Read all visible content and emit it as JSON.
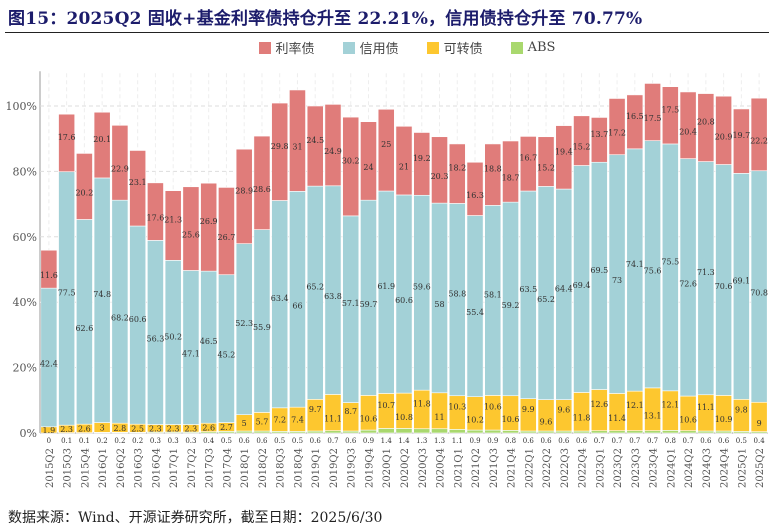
{
  "title": "图15：2025Q2 固收+基金利率债持仓升至 22.21%，信用债持仓升至 70.77%",
  "source": "数据来源：Wind、开源证券研究所，截至日期：2025/6/30",
  "chart_data": {
    "type": "bar",
    "stacked": true,
    "ylim": [
      0,
      110
    ],
    "yticks": [
      "0%",
      "20%",
      "40%",
      "60%",
      "80%",
      "100%"
    ],
    "grid": true,
    "legend_position": "top",
    "categories": [
      "2015Q2",
      "2015Q3",
      "2015Q4",
      "2016Q1",
      "2016Q2",
      "2016Q3",
      "2016Q4",
      "2017Q1",
      "2017Q2",
      "2017Q3",
      "2017Q4",
      "2018Q1",
      "2018Q2",
      "2018Q3",
      "2018Q4",
      "2019Q1",
      "2019Q2",
      "2019Q3",
      "2019Q4",
      "2020Q1",
      "2020Q2",
      "2020Q3",
      "2020Q4",
      "2021Q1",
      "2021Q2",
      "2021Q3",
      "2021Q4",
      "2022Q1",
      "2022Q2",
      "2022Q3",
      "2022Q4",
      "2023Q1",
      "2023Q2",
      "2023Q3",
      "2023Q4",
      "2024Q1",
      "2024Q2",
      "2024Q3",
      "2024Q4",
      "2025Q1",
      "2025Q2"
    ],
    "series": [
      {
        "name": "ABS",
        "color": "#a9d86e",
        "values": [
          0,
          0.1,
          0.1,
          0.2,
          0.2,
          0.2,
          0.3,
          0.3,
          0.3,
          0.4,
          0.5,
          0.6,
          0.6,
          0.5,
          0.5,
          0.6,
          0.7,
          0.6,
          0.9,
          1.4,
          1.4,
          1.3,
          1.3,
          1.1,
          0.9,
          0.9,
          0.8,
          0.6,
          0.6,
          0.6,
          0.6,
          0.7,
          0.7,
          0.7,
          0.7,
          0.8,
          0.7,
          0.6,
          0.6,
          0.5,
          0.4
        ]
      },
      {
        "name": "可转债",
        "color": "#fdc72f",
        "values": [
          1.9,
          2.3,
          2.6,
          3,
          2.8,
          2.5,
          2.3,
          2.3,
          2.3,
          2.6,
          2.7,
          5,
          5.7,
          7.2,
          7.4,
          9.7,
          11.1,
          8.7,
          10.6,
          10.7,
          10.8,
          11.8,
          11,
          10.3,
          10.2,
          10.6,
          10.6,
          9.9,
          9.6,
          9.6,
          11.8,
          12.6,
          11.4,
          12.1,
          13.1,
          12.1,
          10.6,
          11.1,
          10.9,
          9.8,
          9
        ]
      },
      {
        "name": "信用债",
        "color": "#a3d1d7",
        "values": [
          42.4,
          77.5,
          62.6,
          74.8,
          68.2,
          60.6,
          56.3,
          50.2,
          47.1,
          46.5,
          45.2,
          52.3,
          55.9,
          63.4,
          66,
          65.2,
          63.8,
          57.1,
          59.7,
          61.9,
          60.6,
          59.6,
          58,
          58.8,
          55.4,
          58.1,
          59.2,
          63.5,
          65.2,
          64.4,
          69.4,
          69.5,
          73,
          74.1,
          75.6,
          75.5,
          72.6,
          71.3,
          70.6,
          69.1,
          70.8
        ]
      },
      {
        "name": "利率债",
        "color": "#e07c7a",
        "values": [
          11.6,
          17.6,
          20.2,
          20.1,
          22.9,
          23.1,
          17.6,
          21.3,
          25.6,
          26.9,
          26.7,
          28.9,
          28.6,
          29.8,
          31,
          24.5,
          24.9,
          30.2,
          24,
          25,
          21,
          19.2,
          20.3,
          18.2,
          16.3,
          18.8,
          18.7,
          16.7,
          15.2,
          19.4,
          15.2,
          13.7,
          17.2,
          16.5,
          17.5,
          17.5,
          20.4,
          20.8,
          20.9,
          19.7,
          22.2
        ]
      }
    ],
    "legend_order": [
      "利率债",
      "信用债",
      "可转债",
      "ABS"
    ]
  }
}
